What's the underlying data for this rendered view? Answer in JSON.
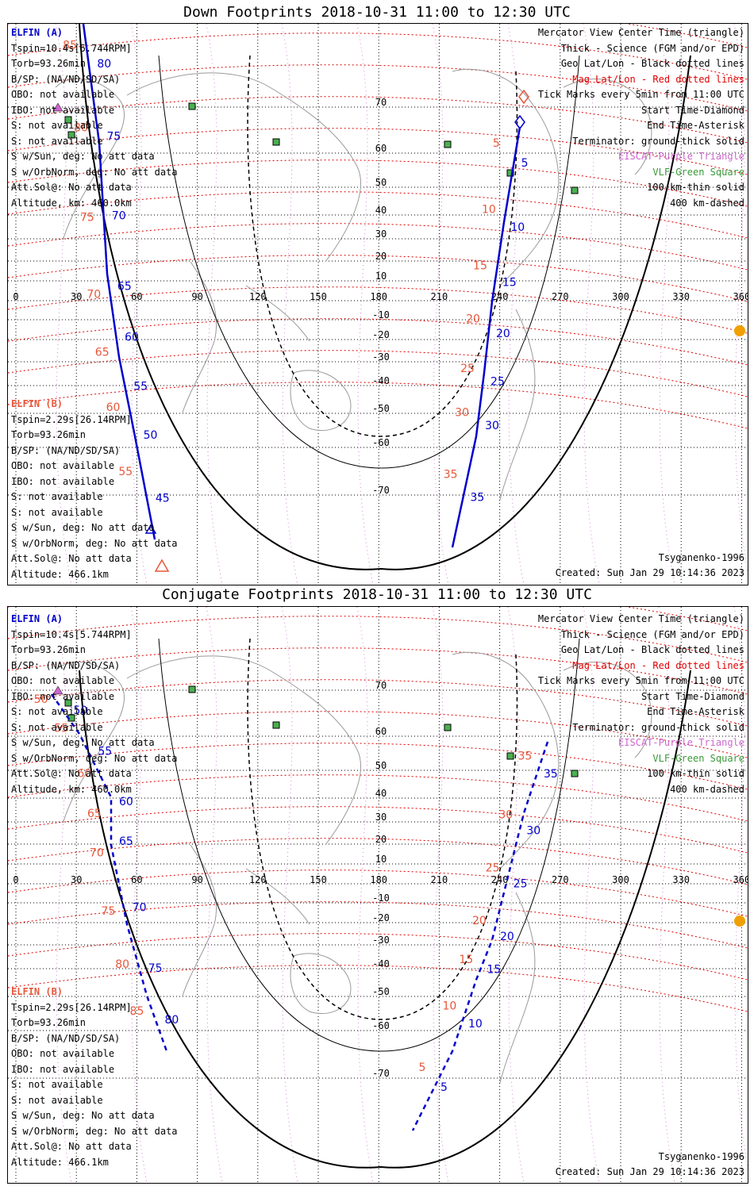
{
  "panels": [
    {
      "title": "Down Footprints 2018-10-31 11:00 to 12:30 UTC",
      "elfin_a": {
        "name": "ELFIN (A)",
        "lines": [
          "Tspin=10.4s[5.744RPM]",
          "Torb=93.26min",
          "B/SP: (NA/ND/SD/SA)",
          "OBO: not available",
          "IBO: not available",
          "S: not available",
          "S: not available",
          "S w/Sun, deg: No att data",
          "S w/OrbNorm, deg: No att data",
          "Att.Sol@: No att data",
          "Altitude, km: 460.0km"
        ]
      },
      "elfin_b": {
        "name": "ELFIN (B)",
        "lines": [
          "Tspin=2.29s[26.14RPM]",
          "Torb=93.26min",
          "B/SP: (NA/ND/SD/SA)",
          "OBO: not available",
          "IBO: not available",
          "S: not available",
          "S: not available",
          "S w/Sun, deg: No att data",
          "S w/OrbNorm, deg: No att data",
          "Att.Sol@: No att data",
          "Altitude: 466.1km"
        ]
      },
      "legend": [
        {
          "text": "Mercator View Center Time (triangle)",
          "color": "#000000"
        },
        {
          "text": "Thick - Science (FGM and/or EPD)",
          "color": "#000000"
        },
        {
          "text": "Geo Lat/Lon - Black dotted lines",
          "color": "#000000"
        },
        {
          "text": "Mag Lat/Lon - Red dotted lines",
          "color": "#e00000"
        },
        {
          "text": "Tick Marks every 5min from 11:00 UTC",
          "color": "#000000"
        },
        {
          "text": "Start Time-Diamond",
          "color": "#000000"
        },
        {
          "text": "End Time-Asterisk",
          "color": "#000000"
        },
        {
          "text": "Terminator: ground-thick solid",
          "color": "#000000"
        },
        {
          "text": "EISCAT-Purple Triangle",
          "color": "#cc66cc"
        },
        {
          "text": "VLF-Green Square",
          "color": "#3a9a3a"
        },
        {
          "text": "100 km-thin solid",
          "color": "#000000"
        },
        {
          "text": "400 km-dashed",
          "color": "#000000"
        }
      ],
      "model": "Tsyganenko-1996",
      "created": "Created: Sun Jan 29 10:14:36 2023",
      "track_a_labels": [
        "80",
        "75",
        "70",
        "65",
        "60",
        "55",
        "50",
        "45"
      ],
      "track_b_labels": [
        "5",
        "10",
        "15",
        "20",
        "25",
        "30",
        "35"
      ],
      "salmon_a_labels": [
        "85",
        "80",
        "75",
        "70",
        "65",
        "60",
        "55"
      ],
      "salmon_b_labels": [
        "5",
        "10",
        "15",
        "20",
        "25",
        "30",
        "35"
      ]
    },
    {
      "title": "Conjugate Footprints 2018-10-31 11:00 to 12:30 UTC",
      "elfin_a": {
        "name": "ELFIN (A)",
        "lines": [
          "Tspin=10.4s[5.744RPM]",
          "Torb=93.26min",
          "B/SP: (NA/ND/SD/SA)",
          "OBO: not available",
          "IBO: not available",
          "S: not available",
          "S: not available",
          "S w/Sun, deg: No att data",
          "S w/OrbNorm, deg: No att data",
          "Att.Sol@: No att data",
          "Altitude, km: 460.0km"
        ]
      },
      "elfin_b": {
        "name": "ELFIN (B)",
        "lines": [
          "Tspin=2.29s[26.14RPM]",
          "Torb=93.26min",
          "B/SP: (NA/ND/SD/SA)",
          "OBO: not available",
          "IBO: not available",
          "S: not available",
          "S: not available",
          "S w/Sun, deg: No att data",
          "S w/OrbNorm, deg: No att data",
          "Att.Sol@: No att data",
          "Altitude: 466.1km"
        ]
      },
      "legend": [
        {
          "text": "Mercator View Center Time (triangle)",
          "color": "#000000"
        },
        {
          "text": "Thick - Science (FGM and/or EPD)",
          "color": "#000000"
        },
        {
          "text": "Geo Lat/Lon - Black dotted lines",
          "color": "#000000"
        },
        {
          "text": "Mag Lat/Lon - Red dotted lines",
          "color": "#e00000"
        },
        {
          "text": "Tick Marks every 5min from 11:00 UTC",
          "color": "#000000"
        },
        {
          "text": "Start Time-Diamond",
          "color": "#000000"
        },
        {
          "text": "End Time-Asterisk",
          "color": "#000000"
        },
        {
          "text": "Terminator: ground-thick solid",
          "color": "#000000"
        },
        {
          "text": "EISCAT-Purple Triangle",
          "color": "#cc66cc"
        },
        {
          "text": "VLF-Green Square",
          "color": "#3a9a3a"
        },
        {
          "text": "100 km-thin solid",
          "color": "#000000"
        },
        {
          "text": "400 km-dashed",
          "color": "#000000"
        }
      ],
      "model": "Tsyganenko-1996",
      "created": "Created: Sun Jan 29 10:14:36 2023",
      "track_a_labels": [
        "50",
        "55",
        "60",
        "65",
        "70",
        "75",
        "80"
      ],
      "track_b_labels": [
        "35",
        "30",
        "25",
        "20",
        "15",
        "10",
        "5"
      ],
      "salmon_a_labels": [
        "50",
        "55",
        "60",
        "65",
        "70",
        "75",
        "80",
        "85"
      ],
      "salmon_b_labels": [
        "35",
        "30",
        "25",
        "20",
        "15",
        "10",
        "5"
      ]
    }
  ],
  "lon_ticks": [
    "0",
    "30",
    "60",
    "90",
    "120",
    "150",
    "180",
    "210",
    "240",
    "270",
    "300",
    "330",
    "360"
  ],
  "lat_ticks": [
    "70",
    "60",
    "50",
    "40",
    "30",
    "20",
    "10",
    "-10",
    "-20",
    "-30",
    "-40",
    "-50",
    "-60",
    "-70"
  ],
  "colors": {
    "sat_a": "#0000cc",
    "sat_b": "#e8573a",
    "mag_grid": "#e00000",
    "geo_grid": "#000000",
    "eiscat": "#cc66cc",
    "vlf": "#3a9a3a",
    "sun": "#f0a000"
  }
}
